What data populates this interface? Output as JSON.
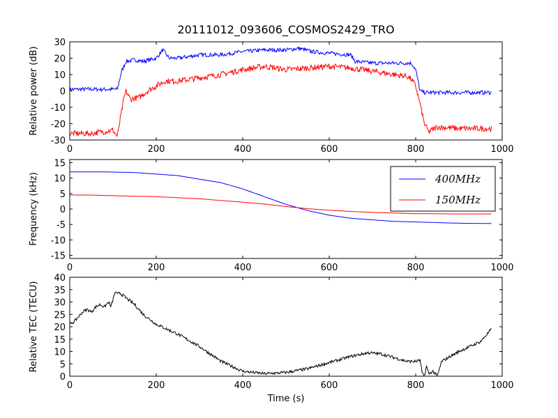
{
  "figure": {
    "title": "20111012_093606_COSMOS2429_TRO"
  },
  "chart_data": [
    {
      "type": "line",
      "ylabel": "Relative power (dB)",
      "xlabel": "",
      "xlim": [
        0,
        1000
      ],
      "ylim": [
        -30,
        30
      ],
      "xticks": [
        "0",
        "200",
        "400",
        "600",
        "800",
        "1000"
      ],
      "yticks": [
        "-30",
        "-20",
        "-10",
        "0",
        "10",
        "20",
        "30"
      ],
      "grid": false,
      "series": [
        {
          "color": "#0000ff",
          "noise": 1.2,
          "x": [
            0,
            60,
            110,
            120,
            130,
            150,
            170,
            200,
            215,
            230,
            250,
            300,
            350,
            400,
            450,
            500,
            530,
            560,
            600,
            650,
            660,
            700,
            740,
            760,
            790,
            800,
            810,
            820,
            850,
            900,
            975
          ],
          "y": [
            1,
            1,
            1,
            12,
            18,
            19,
            18,
            20,
            25,
            20,
            20,
            22,
            22,
            24,
            25,
            25,
            26,
            24,
            23,
            22,
            18,
            17,
            17,
            17,
            17,
            13,
            0,
            -1,
            -1,
            -1,
            -1
          ]
        },
        {
          "color": "#ff0000",
          "noise": 1.8,
          "x": [
            0,
            50,
            100,
            110,
            115,
            125,
            130,
            140,
            160,
            180,
            200,
            220,
            250,
            300,
            350,
            400,
            450,
            500,
            550,
            600,
            650,
            700,
            750,
            780,
            790,
            800,
            810,
            820,
            830,
            850,
            900,
            975
          ],
          "y": [
            -26,
            -26,
            -24,
            -28,
            -20,
            -5,
            0,
            -5,
            -4,
            0,
            3,
            6,
            6,
            8,
            10,
            13,
            15,
            13,
            14,
            15,
            14,
            12,
            10,
            9,
            7,
            3,
            -8,
            -20,
            -25,
            -22,
            -23,
            -23
          ]
        }
      ]
    },
    {
      "type": "line",
      "ylabel": "Frequency (kHz)",
      "xlabel": "",
      "xlim": [
        0,
        1000
      ],
      "ylim": [
        -16,
        16
      ],
      "xticks": [
        "0",
        "200",
        "400",
        "600",
        "800",
        "1000"
      ],
      "yticks": [
        "-15",
        "-10",
        "-5",
        "0",
        "5",
        "10",
        "15"
      ],
      "grid": false,
      "legend_position": "top-right",
      "series": [
        {
          "name": "400MHz",
          "color": "#0000ff",
          "noise": 0,
          "x": [
            0,
            80,
            150,
            250,
            350,
            400,
            450,
            500,
            550,
            600,
            650,
            700,
            750,
            800,
            850,
            900,
            975
          ],
          "y": [
            12,
            12,
            11.8,
            10.8,
            8.5,
            6.5,
            4,
            1.5,
            -0.5,
            -2,
            -3,
            -3.5,
            -4,
            -4.2,
            -4.4,
            -4.6,
            -4.7
          ]
        },
        {
          "name": "150MHz",
          "color": "#ff0000",
          "noise": 0,
          "x": [
            0,
            50,
            100,
            200,
            300,
            400,
            450,
            500,
            550,
            600,
            650,
            700,
            800,
            900,
            975
          ],
          "y": [
            4.5,
            4.5,
            4.3,
            4,
            3.3,
            2.2,
            1.6,
            0.8,
            0.1,
            -0.4,
            -0.8,
            -1.1,
            -1.5,
            -1.6,
            -1.6
          ]
        }
      ]
    },
    {
      "type": "line",
      "ylabel": "Relative TEC (TECU)",
      "xlabel": "Time (s)",
      "xlim": [
        0,
        1000
      ],
      "ylim": [
        0,
        40
      ],
      "xticks": [
        "0",
        "200",
        "400",
        "600",
        "800",
        "1000"
      ],
      "yticks": [
        "0",
        "5",
        "10",
        "15",
        "20",
        "25",
        "30",
        "35",
        "40"
      ],
      "grid": false,
      "series": [
        {
          "color": "#000000",
          "noise": 0.6,
          "x": [
            0,
            10,
            20,
            30,
            40,
            50,
            60,
            70,
            80,
            90,
            95,
            100,
            105,
            110,
            115,
            120,
            150,
            170,
            200,
            250,
            300,
            350,
            400,
            450,
            500,
            550,
            600,
            650,
            690,
            720,
            760,
            780,
            800,
            810,
            815,
            820,
            825,
            830,
            840,
            850,
            860,
            900,
            950,
            975
          ],
          "y": [
            21,
            22,
            24,
            26,
            27,
            26,
            28,
            29,
            28,
            30,
            28,
            31,
            34,
            33,
            34,
            33,
            29,
            25,
            21,
            17,
            12,
            6,
            2,
            1,
            1.5,
            3,
            5.5,
            8,
            9.5,
            9,
            7,
            6,
            6,
            6.5,
            1,
            0,
            4,
            1,
            2,
            0,
            6,
            10,
            14,
            19
          ]
        }
      ]
    }
  ]
}
